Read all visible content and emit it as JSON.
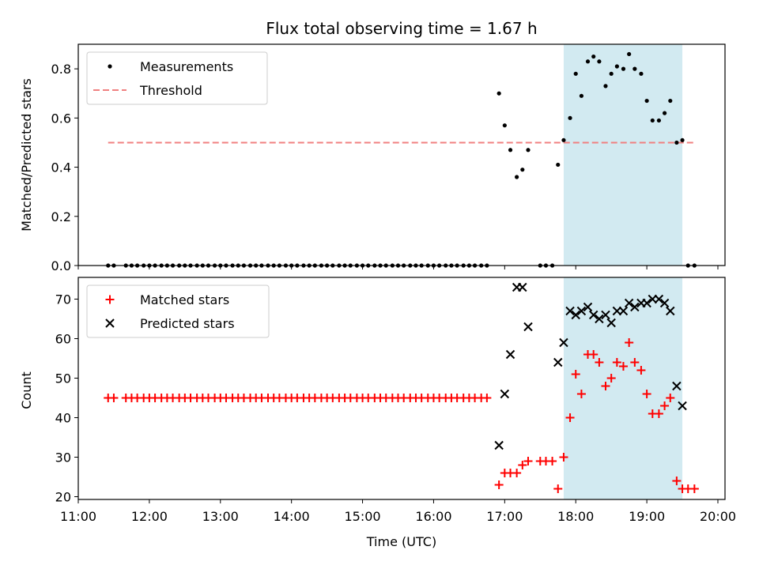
{
  "chart_data": {
    "type": "scatter",
    "title": "Flux total observing time = 1.67 h",
    "xlabel": "Time (UTC)",
    "xlim": [
      11.0,
      20.1
    ],
    "x_ticks": [
      11,
      12,
      13,
      14,
      15,
      16,
      17,
      18,
      19,
      20
    ],
    "x_tick_labels": [
      "11:00",
      "12:00",
      "13:00",
      "14:00",
      "15:00",
      "16:00",
      "17:00",
      "18:00",
      "19:00",
      "20:00"
    ],
    "highlight_span": {
      "x_start": 17.83,
      "x_end": 19.5,
      "color": "#add8e6"
    },
    "panels": [
      {
        "ylabel": "Matched/Predicted stars",
        "ylim": [
          0,
          0.9
        ],
        "y_ticks": [
          0,
          0.2,
          0.4,
          0.6,
          0.8
        ],
        "y_tick_labels": [
          "0.0",
          "0.2",
          "0.4",
          "0.6",
          "0.8"
        ],
        "legend": {
          "position": "upper-left",
          "entries": [
            "Measurements",
            "Threshold"
          ]
        },
        "threshold": {
          "name": "Threshold",
          "value": 0.5,
          "x_start": 11.42,
          "x_end": 19.67,
          "color": "#f08080"
        },
        "series": [
          {
            "name": "Measurements",
            "marker": "dot",
            "color": "#000000",
            "x": [
              11.42,
              11.5,
              11.67,
              11.75,
              11.83,
              11.92,
              12.0,
              12.08,
              12.17,
              12.25,
              12.33,
              12.42,
              12.5,
              12.58,
              12.67,
              12.75,
              12.83,
              12.92,
              13.0,
              13.08,
              13.17,
              13.25,
              13.33,
              13.42,
              13.5,
              13.58,
              13.67,
              13.75,
              13.83,
              13.92,
              14.0,
              14.08,
              14.17,
              14.25,
              14.33,
              14.42,
              14.5,
              14.58,
              14.67,
              14.75,
              14.83,
              14.92,
              15.0,
              15.08,
              15.17,
              15.25,
              15.33,
              15.42,
              15.5,
              15.58,
              15.67,
              15.75,
              15.83,
              15.92,
              16.0,
              16.08,
              16.17,
              16.25,
              16.33,
              16.42,
              16.5,
              16.58,
              16.67,
              16.75,
              16.92,
              17.0,
              17.08,
              17.17,
              17.25,
              17.33,
              17.5,
              17.58,
              17.67,
              17.75,
              17.83,
              17.92,
              18.0,
              18.08,
              18.17,
              18.25,
              18.33,
              18.42,
              18.5,
              18.58,
              18.67,
              18.75,
              18.83,
              18.92,
              19.0,
              19.08,
              19.17,
              19.25,
              19.33,
              19.42,
              19.5,
              19.58,
              19.67
            ],
            "y": [
              0,
              0,
              0,
              0,
              0,
              0,
              0,
              0,
              0,
              0,
              0,
              0,
              0,
              0,
              0,
              0,
              0,
              0,
              0,
              0,
              0,
              0,
              0,
              0,
              0,
              0,
              0,
              0,
              0,
              0,
              0,
              0,
              0,
              0,
              0,
              0,
              0,
              0,
              0,
              0,
              0,
              0,
              0,
              0,
              0,
              0,
              0,
              0,
              0,
              0,
              0,
              0,
              0,
              0,
              0,
              0,
              0,
              0,
              0,
              0,
              0,
              0,
              0,
              0,
              0.7,
              0.57,
              0.47,
              0.36,
              0.39,
              0.47,
              0,
              0,
              0,
              0.41,
              0.51,
              0.6,
              0.78,
              0.69,
              0.83,
              0.85,
              0.83,
              0.73,
              0.78,
              0.81,
              0.8,
              0.86,
              0.8,
              0.78,
              0.67,
              0.59,
              0.59,
              0.62,
              0.67,
              0.5,
              0.51,
              0,
              0
            ]
          }
        ]
      },
      {
        "ylabel": "Count",
        "ylim": [
          19.3,
          75.5
        ],
        "y_ticks": [
          20,
          30,
          40,
          50,
          60,
          70
        ],
        "y_tick_labels": [
          "20",
          "30",
          "40",
          "50",
          "60",
          "70"
        ],
        "legend": {
          "position": "upper-left",
          "entries": [
            "Matched stars",
            "Predicted stars"
          ]
        },
        "series": [
          {
            "name": "Matched stars",
            "marker": "plus",
            "color": "#ff0000",
            "x": [
              11.42,
              11.5,
              11.67,
              11.75,
              11.83,
              11.92,
              12.0,
              12.08,
              12.17,
              12.25,
              12.33,
              12.42,
              12.5,
              12.58,
              12.67,
              12.75,
              12.83,
              12.92,
              13.0,
              13.08,
              13.17,
              13.25,
              13.33,
              13.42,
              13.5,
              13.58,
              13.67,
              13.75,
              13.83,
              13.92,
              14.0,
              14.08,
              14.17,
              14.25,
              14.33,
              14.42,
              14.5,
              14.58,
              14.67,
              14.75,
              14.83,
              14.92,
              15.0,
              15.08,
              15.17,
              15.25,
              15.33,
              15.42,
              15.5,
              15.58,
              15.67,
              15.75,
              15.83,
              15.92,
              16.0,
              16.08,
              16.17,
              16.25,
              16.33,
              16.42,
              16.5,
              16.58,
              16.67,
              16.75,
              16.92,
              17.0,
              17.08,
              17.17,
              17.25,
              17.33,
              17.5,
              17.58,
              17.67,
              17.75,
              17.83,
              17.92,
              18.0,
              18.08,
              18.17,
              18.25,
              18.33,
              18.42,
              18.5,
              18.58,
              18.67,
              18.75,
              18.83,
              18.92,
              19.0,
              19.08,
              19.17,
              19.25,
              19.33,
              19.42,
              19.5,
              19.58,
              19.67
            ],
            "y": [
              45,
              45,
              45,
              45,
              45,
              45,
              45,
              45,
              45,
              45,
              45,
              45,
              45,
              45,
              45,
              45,
              45,
              45,
              45,
              45,
              45,
              45,
              45,
              45,
              45,
              45,
              45,
              45,
              45,
              45,
              45,
              45,
              45,
              45,
              45,
              45,
              45,
              45,
              45,
              45,
              45,
              45,
              45,
              45,
              45,
              45,
              45,
              45,
              45,
              45,
              45,
              45,
              45,
              45,
              45,
              45,
              45,
              45,
              45,
              45,
              45,
              45,
              45,
              45,
              23,
              26,
              26,
              26,
              28,
              29,
              29,
              29,
              29,
              22,
              30,
              40,
              51,
              46,
              56,
              56,
              54,
              48,
              50,
              54,
              53,
              59,
              54,
              52,
              46,
              41,
              41,
              43,
              45,
              24,
              22,
              22,
              22
            ]
          },
          {
            "name": "Predicted stars",
            "marker": "cross",
            "color": "#000000",
            "x": [
              16.92,
              17.0,
              17.08,
              17.17,
              17.25,
              17.33,
              17.75,
              17.83,
              17.92,
              18.0,
              18.08,
              18.17,
              18.25,
              18.33,
              18.42,
              18.5,
              18.58,
              18.67,
              18.75,
              18.83,
              18.92,
              19.0,
              19.08,
              19.17,
              19.25,
              19.33,
              19.42,
              19.5
            ],
            "y": [
              33,
              46,
              56,
              73,
              73,
              63,
              54,
              59,
              67,
              66,
              67,
              68,
              66,
              65,
              66,
              64,
              67,
              67,
              69,
              68,
              69,
              69,
              70,
              70,
              69,
              67,
              48,
              43
            ]
          }
        ]
      }
    ]
  }
}
